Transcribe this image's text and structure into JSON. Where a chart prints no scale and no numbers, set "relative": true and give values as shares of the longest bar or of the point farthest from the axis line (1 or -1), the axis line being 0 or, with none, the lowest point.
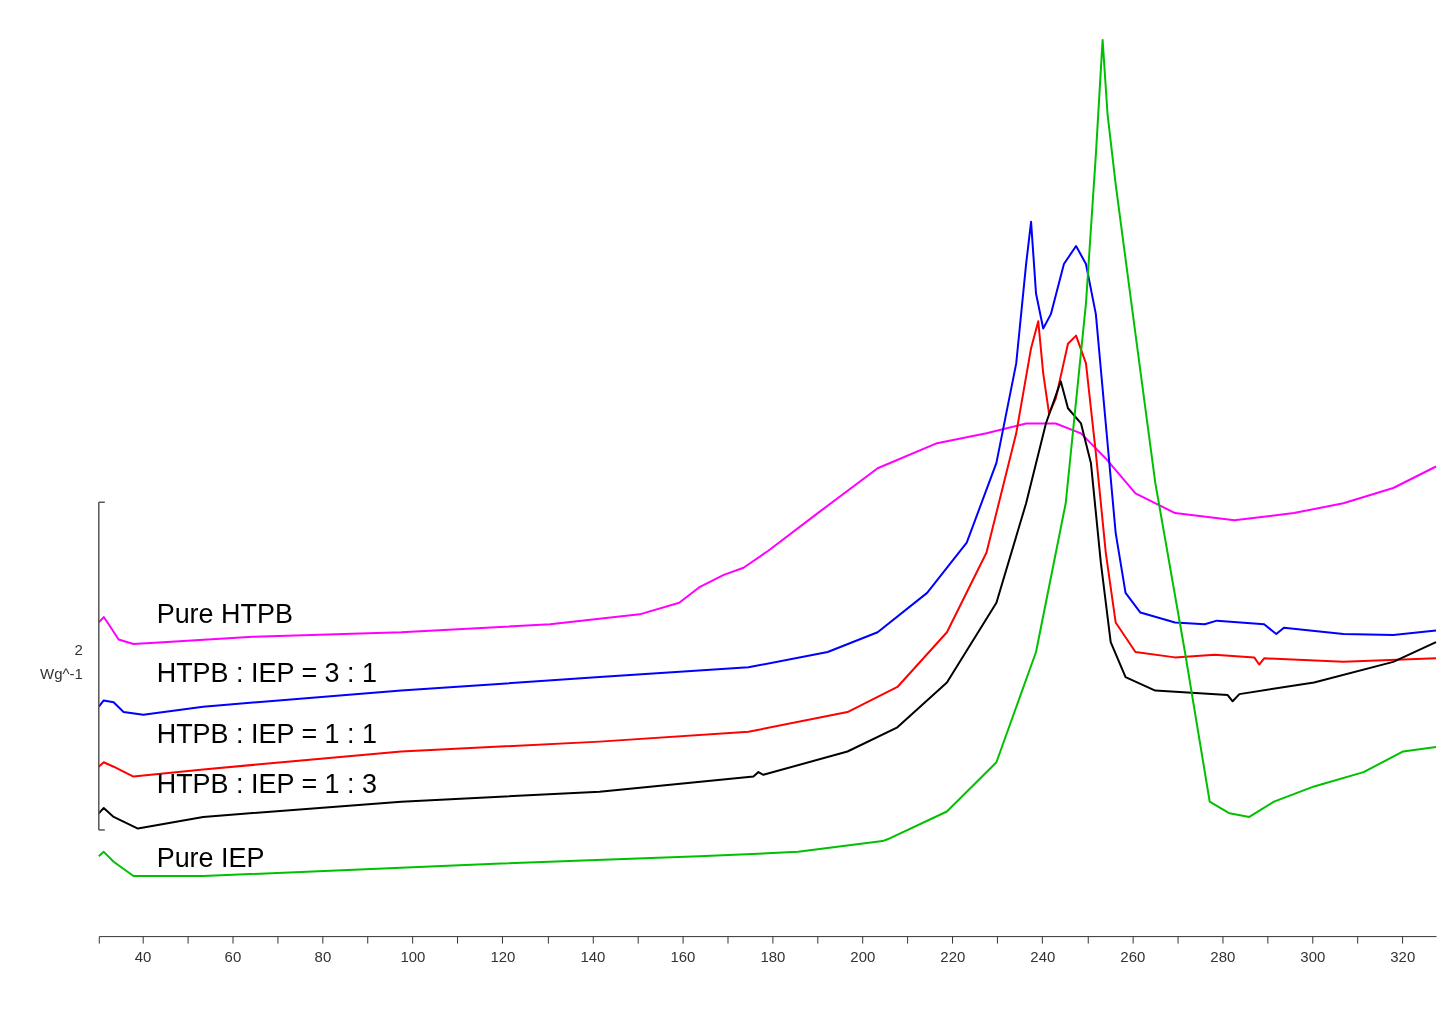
{
  "chart_data": {
    "type": "line",
    "relative": true,
    "legend": false,
    "grid": false,
    "marker": "none",
    "line_style": "solid",
    "xlim": [
      30.3,
      327.5
    ],
    "xticks": [
      {
        "value": 30.3,
        "label": null
      },
      40,
      {
        "value": 50,
        "label": null
      },
      60,
      {
        "value": 70,
        "label": null
      },
      80,
      {
        "value": 90,
        "label": null
      },
      100,
      {
        "value": 110,
        "label": null
      },
      120,
      {
        "value": 130,
        "label": null
      },
      140,
      {
        "value": 150,
        "label": null
      },
      160,
      {
        "value": 170,
        "label": null
      },
      180,
      {
        "value": 190,
        "label": null
      },
      200,
      {
        "value": 210,
        "label": null
      },
      220,
      {
        "value": 230,
        "label": null
      },
      240,
      {
        "value": 250,
        "label": null
      },
      260,
      {
        "value": 270,
        "label": null
      },
      280,
      {
        "value": 290,
        "label": null
      },
      300,
      {
        "value": 310,
        "label": null
      },
      320
    ],
    "annotations": [
      "2",
      "Wg^-1"
    ],
    "series": [
      {
        "name": "Pure HTPB",
        "color": "#ff00ff",
        "x": [
          30.3,
          31.4,
          32.5,
          34.7,
          38,
          44.6,
          64.5,
          97.5,
          130.6,
          150.5,
          159.3,
          163.7,
          169.2,
          173.6,
          179.1,
          190.1,
          203.4,
          216.6,
          227.6,
          236.4,
          243,
          248.6,
          254.1,
          260.7,
          269.5,
          282.7,
          295.9,
          306.9,
          318,
          327.5
        ],
        "values": [
          0.35,
          0.356,
          0.348,
          0.331,
          0.326,
          0.328,
          0.334,
          0.339,
          0.348,
          0.359,
          0.372,
          0.389,
          0.403,
          0.411,
          0.43,
          0.472,
          0.522,
          0.55,
          0.561,
          0.572,
          0.572,
          0.561,
          0.533,
          0.494,
          0.472,
          0.464,
          0.472,
          0.483,
          0.5,
          0.524
        ]
      },
      {
        "name": "HTPB : IEP = 3 : 1",
        "color": "#0000ff",
        "x": [
          30.3,
          31.4,
          33.6,
          35.8,
          40.2,
          53.5,
          97.5,
          141.6,
          174.7,
          192.3,
          203.4,
          214.4,
          223.2,
          229.8,
          234.2,
          236.4,
          237.5,
          238.6,
          240.2,
          241.9,
          244.8,
          247.5,
          249.7,
          251.9,
          254.1,
          256.3,
          258.5,
          261.8,
          269.5,
          276.1,
          278.8,
          289.3,
          292,
          293.7,
          306.9,
          318,
          327.5
        ],
        "values": [
          0.256,
          0.263,
          0.261,
          0.25,
          0.247,
          0.256,
          0.274,
          0.289,
          0.3,
          0.317,
          0.339,
          0.383,
          0.439,
          0.528,
          0.639,
          0.75,
          0.797,
          0.717,
          0.678,
          0.694,
          0.75,
          0.77,
          0.75,
          0.694,
          0.572,
          0.45,
          0.383,
          0.361,
          0.35,
          0.348,
          0.352,
          0.348,
          0.337,
          0.344,
          0.337,
          0.336,
          0.341
        ]
      },
      {
        "name": "HTPB : IEP = 1 : 1",
        "color": "#ff0000",
        "x": [
          30.3,
          31.4,
          33.6,
          38,
          53.5,
          97.5,
          141.6,
          174.7,
          196.7,
          207.8,
          218.8,
          227.6,
          234.2,
          237.5,
          239.1,
          240.2,
          241.5,
          243,
          245.7,
          247.5,
          249.7,
          251.9,
          254.1,
          256.3,
          260.7,
          269.5,
          278.3,
          287.1,
          288.2,
          289.3,
          306.9,
          327.5
        ],
        "values": [
          0.189,
          0.194,
          0.189,
          0.178,
          0.186,
          0.206,
          0.217,
          0.228,
          0.25,
          0.278,
          0.339,
          0.428,
          0.561,
          0.656,
          0.686,
          0.628,
          0.583,
          0.6,
          0.661,
          0.67,
          0.639,
          0.539,
          0.428,
          0.35,
          0.317,
          0.311,
          0.314,
          0.311,
          0.303,
          0.31,
          0.306,
          0.31
        ]
      },
      {
        "name": "HTPB : IEP = 1 : 3",
        "color": "#000000",
        "x": [
          30.3,
          31.4,
          33.6,
          39,
          53.5,
          97.5,
          141.6,
          175.8,
          176.9,
          178,
          196.7,
          207.8,
          218.8,
          229.8,
          236.4,
          240.8,
          244.1,
          245.7,
          248.6,
          250.8,
          253,
          255.2,
          258.5,
          265.1,
          281.2,
          282.3,
          283.8,
          300.4,
          318,
          327.5
        ],
        "values": [
          0.137,
          0.143,
          0.133,
          0.12,
          0.133,
          0.15,
          0.161,
          0.178,
          0.183,
          0.18,
          0.206,
          0.233,
          0.283,
          0.372,
          0.483,
          0.572,
          0.619,
          0.589,
          0.572,
          0.528,
          0.417,
          0.328,
          0.289,
          0.274,
          0.269,
          0.262,
          0.27,
          0.283,
          0.306,
          0.328
        ]
      },
      {
        "name": "Pure IEP",
        "color": "#00c000",
        "x": [
          30.3,
          31.4,
          33.6,
          38,
          53.5,
          119.6,
          163.7,
          185.7,
          204.5,
          205.6,
          218.8,
          229.8,
          238.6,
          245.2,
          249.7,
          251.9,
          253.4,
          254.5,
          256.3,
          260.7,
          265.1,
          271.7,
          277.2,
          281.6,
          286,
          291.5,
          300.4,
          311.4,
          320.2,
          327.5
        ],
        "values": [
          0.089,
          0.094,
          0.083,
          0.067,
          0.067,
          0.081,
          0.089,
          0.094,
          0.106,
          0.108,
          0.139,
          0.194,
          0.317,
          0.483,
          0.706,
          0.872,
          1,
          0.917,
          0.839,
          0.672,
          0.506,
          0.317,
          0.15,
          0.137,
          0.133,
          0.15,
          0.167,
          0.183,
          0.206,
          0.211
        ]
      }
    ]
  }
}
